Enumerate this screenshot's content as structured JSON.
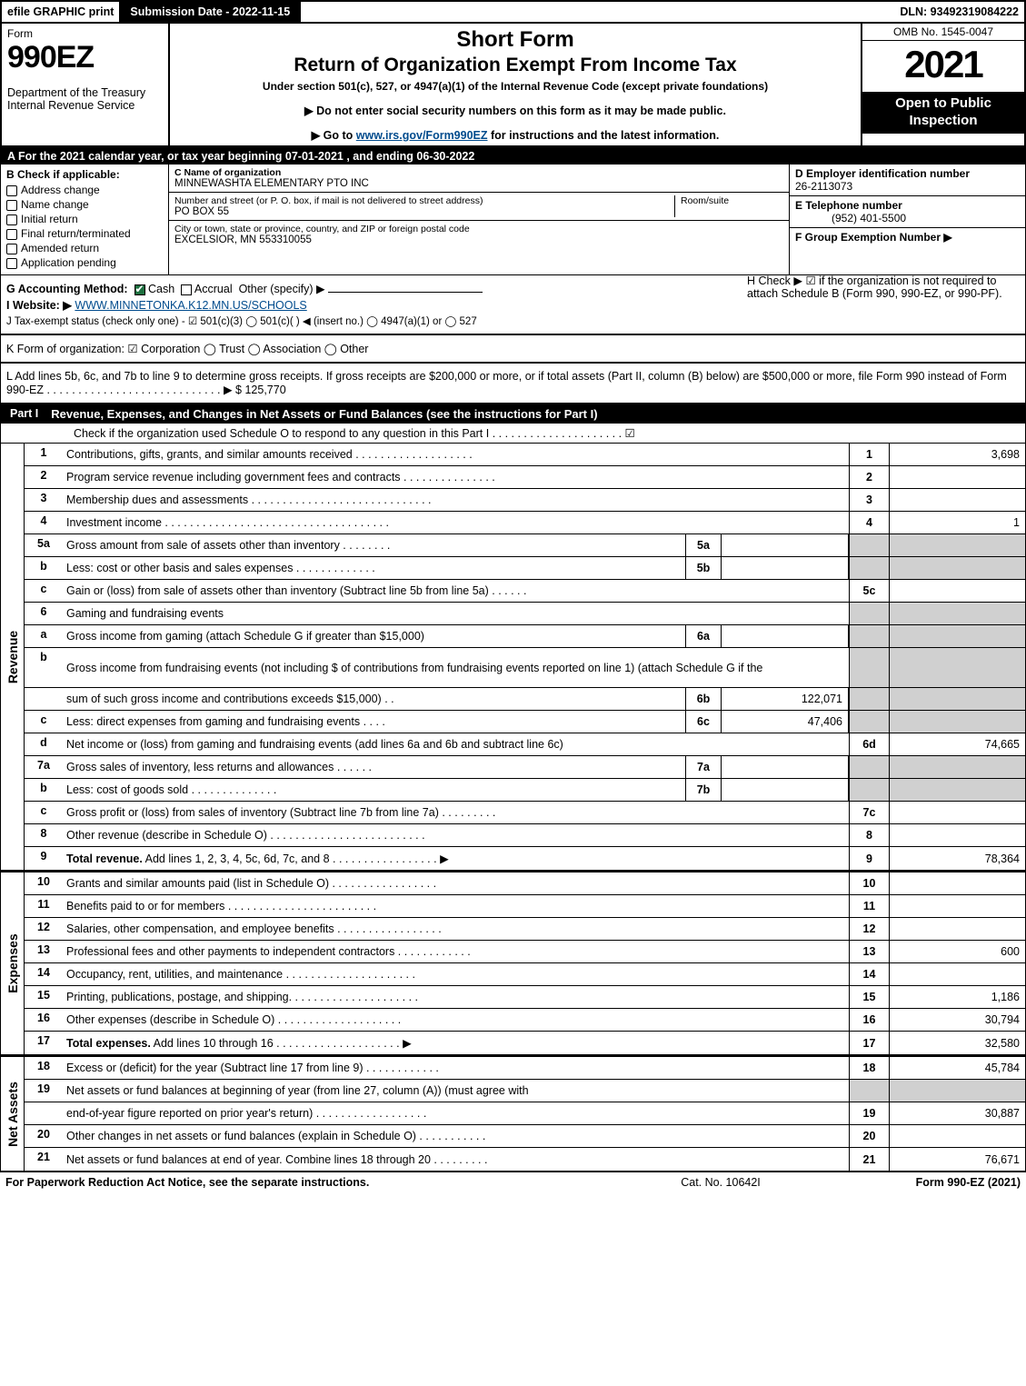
{
  "topbar": {
    "efile": "efile GRAPHIC print",
    "subdate": "Submission Date - 2022-11-15",
    "dln": "DLN: 93492319084222"
  },
  "hdr": {
    "form": "Form",
    "formno": "990EZ",
    "dept": "Department of the Treasury\nInternal Revenue Service",
    "title": "Short Form",
    "title2": "Return of Organization Exempt From Income Tax",
    "sub": "Under section 501(c), 527, or 4947(a)(1) of the Internal Revenue Code (except private foundations)",
    "arrow1": "▶ Do not enter social security numbers on this form as it may be made public.",
    "arrow2": "▶ Go to www.irs.gov/Form990EZ for instructions and the latest information.",
    "omb": "OMB No. 1545-0047",
    "year": "2021",
    "open": "Open to Public Inspection"
  },
  "A": "A  For the 2021 calendar year, or tax year beginning 07-01-2021 , and ending 06-30-2022",
  "B": {
    "label": "B  Check if applicable:",
    "items": [
      "Address change",
      "Name change",
      "Initial return",
      "Final return/terminated",
      "Amended return",
      "Application pending"
    ]
  },
  "C": {
    "label": "C Name of organization",
    "name": "MINNEWASHTA ELEMENTARY PTO INC",
    "streetlbl": "Number and street (or P. O. box, if mail is not delivered to street address)",
    "room": "Room/suite",
    "street": "PO BOX 55",
    "citylbl": "City or town, state or province, country, and ZIP or foreign postal code",
    "city": "EXCELSIOR, MN  553310055"
  },
  "D": {
    "lbl": "D Employer identification number",
    "val": "26-2113073",
    "tel_lbl": "E Telephone number",
    "tel": "(952) 401-5500",
    "grp_lbl": "F Group Exemption Number   ▶",
    "grp": ""
  },
  "G": {
    "lbl": "G Accounting Method:",
    "cash": "Cash",
    "accr": "Accrual",
    "other": "Other (specify) ▶"
  },
  "H": "H   Check ▶  ☑  if the organization is not required to attach Schedule B (Form 990, 990-EZ, or 990-PF).",
  "I": {
    "lbl": "I Website: ▶",
    "val": "WWW.MINNETONKA.K12.MN.US/SCHOOLS"
  },
  "J": "J Tax-exempt status (check only one) - ☑ 501(c)(3)  ◯ 501(c)(  ) ◀ (insert no.)  ◯ 4947(a)(1) or  ◯ 527",
  "K": "K Form of organization:  ☑ Corporation  ◯ Trust  ◯ Association  ◯ Other",
  "L": "L Add lines 5b, 6c, and 7b to line 9 to determine gross receipts. If gross receipts are $200,000 or more, or if total assets (Part II, column (B) below) are $500,000 or more, file Form 990 instead of Form 990-EZ  .  .  .  .  .  .  .  .  .  .  .  .  .  .  .  .  .  .  .  .  .  .  .  .  .  .  .  .  ▶ $ 125,770",
  "part1": {
    "label": "Part I",
    "title": "Revenue, Expenses, and Changes in Net Assets or Fund Balances (see the instructions for Part I)",
    "check": "Check if the organization used Schedule O to respond to any question in this Part I .  .  .  .  .  .  .  .  .  .  .  .  .  .  .  .  .  .  .  .  .  ☑"
  },
  "rev": [
    {
      "n": "1",
      "d": "Contributions, gifts, grants, and similar amounts received  .  .  .  .  .  .  .  .  .  .  .  .  .  .  .  .  .  .  .",
      "rn": "1",
      "rv": "3,698"
    },
    {
      "n": "2",
      "d": "Program service revenue including government fees and contracts  .  .  .  .  .  .  .  .  .  .  .  .  .  .  .",
      "rn": "2",
      "rv": ""
    },
    {
      "n": "3",
      "d": "Membership dues and assessments  .  .  .  .  .  .  .  .  .  .  .  .  .  .  .  .  .  .  .  .  .  .  .  .  .  .  .  .  .",
      "rn": "3",
      "rv": ""
    },
    {
      "n": "4",
      "d": "Investment income  .  .  .  .  .  .  .  .  .  .  .  .  .  .  .  .  .  .  .  .  .  .  .  .  .  .  .  .  .  .  .  .  .  .  .  .",
      "rn": "4",
      "rv": "1"
    },
    {
      "n": "5a",
      "d": "Gross amount from sale of assets other than inventory  .  .  .  .  .  .  .  .",
      "mid": "5a",
      "mv": "",
      "grey": true
    },
    {
      "n": "b",
      "d": "Less: cost or other basis and sales expenses  .  .  .  .  .  .  .  .  .  .  .  .  .",
      "mid": "5b",
      "mv": "",
      "grey": true
    },
    {
      "n": "c",
      "d": "Gain or (loss) from sale of assets other than inventory (Subtract line 5b from line 5a)  .  .  .  .  .  .",
      "rn": "5c",
      "rv": ""
    },
    {
      "n": "6",
      "d": "Gaming and fundraising events",
      "grey": true,
      "noright": true
    },
    {
      "n": "a",
      "d": "Gross income from gaming (attach Schedule G if greater than $15,000)",
      "mid": "6a",
      "mv": "",
      "grey": true
    },
    {
      "n": "b",
      "d": "Gross income from fundraising events (not including $                       of contributions from fundraising events reported on line 1) (attach Schedule G if the",
      "grey": true,
      "noright": true,
      "tall": true
    },
    {
      "n": "",
      "d": "sum of such gross income and contributions exceeds $15,000)    .   .",
      "mid": "6b",
      "mv": "122,071",
      "grey": true
    },
    {
      "n": "c",
      "d": "Less: direct expenses from gaming and fundraising events    .   .   .  .",
      "mid": "6c",
      "mv": "47,406",
      "grey": true
    },
    {
      "n": "d",
      "d": "Net income or (loss) from gaming and fundraising events (add lines 6a and 6b and subtract line 6c)",
      "rn": "6d",
      "rv": "74,665"
    },
    {
      "n": "7a",
      "d": "Gross sales of inventory, less returns and allowances  .  .  .  .  .  .",
      "mid": "7a",
      "mv": "",
      "grey": true
    },
    {
      "n": "b",
      "d": "Less: cost of goods sold        .   .   .   .   .   .   .   .   .   .   .   .   .   .",
      "mid": "7b",
      "mv": "",
      "grey": true
    },
    {
      "n": "c",
      "d": "Gross profit or (loss) from sales of inventory (Subtract line 7b from line 7a)  .  .  .  .  .  .  .  .  .",
      "rn": "7c",
      "rv": ""
    },
    {
      "n": "8",
      "d": "Other revenue (describe in Schedule O)  .  .  .  .  .  .  .  .  .  .  .  .  .  .  .  .  .  .  .  .  .  .  .  .  .",
      "rn": "8",
      "rv": ""
    },
    {
      "n": "9",
      "d": "Total revenue. Add lines 1, 2, 3, 4, 5c, 6d, 7c, and 8  .   .   .   .   .   .   .   .   .   .   .   .   .   .   .   .   .   ▶",
      "rn": "9",
      "rv": "78,364",
      "bold": true
    }
  ],
  "exp": [
    {
      "n": "10",
      "d": "Grants and similar amounts paid (list in Schedule O)  .   .   .   .   .   .   .   .   .   .   .   .   .   .   .   .   .",
      "rn": "10",
      "rv": ""
    },
    {
      "n": "11",
      "d": "Benefits paid to or for members     .   .   .   .   .   .   .   .   .   .   .   .   .   .   .   .   .   .   .   .   .   .   .   .",
      "rn": "11",
      "rv": ""
    },
    {
      "n": "12",
      "d": "Salaries, other compensation, and employee benefits .   .   .   .   .   .   .   .   .   .   .   .   .   .   .   .   .",
      "rn": "12",
      "rv": ""
    },
    {
      "n": "13",
      "d": "Professional fees and other payments to independent contractors  .   .   .   .   .   .   .   .   .   .   .   .",
      "rn": "13",
      "rv": "600"
    },
    {
      "n": "14",
      "d": "Occupancy, rent, utilities, and maintenance .   .   .   .   .   .   .   .   .   .   .   .   .   .   .   .   .   .   .   .   .",
      "rn": "14",
      "rv": ""
    },
    {
      "n": "15",
      "d": "Printing, publications, postage, and shipping.   .   .   .   .   .   .   .   .   .   .   .   .   .   .   .   .   .   .   .   .",
      "rn": "15",
      "rv": "1,186"
    },
    {
      "n": "16",
      "d": "Other expenses (describe in Schedule O)     .   .   .   .   .   .   .   .   .   .   .   .   .   .   .   .   .   .   .   .",
      "rn": "16",
      "rv": "30,794"
    },
    {
      "n": "17",
      "d": "Total expenses. Add lines 10 through 16    .   .   .   .   .   .   .   .   .   .   .   .   .   .   .   .   .   .   .   .   ▶",
      "rn": "17",
      "rv": "32,580",
      "bold": true
    }
  ],
  "net": [
    {
      "n": "18",
      "d": "Excess or (deficit) for the year (Subtract line 17 from line 9)       .   .   .   .   .   .   .   .   .   .   .   .",
      "rn": "18",
      "rv": "45,784"
    },
    {
      "n": "19",
      "d": "Net assets or fund balances at beginning of year (from line 27, column (A)) (must agree with",
      "noright": true,
      "grey": true
    },
    {
      "n": "",
      "d": "end-of-year figure reported on prior year's return) .   .   .   .   .   .   .   .   .   .   .   .   .   .   .   .   .   .",
      "rn": "19",
      "rv": "30,887"
    },
    {
      "n": "20",
      "d": "Other changes in net assets or fund balances (explain in Schedule O) .   .   .   .   .   .   .   .   .   .   .",
      "rn": "20",
      "rv": ""
    },
    {
      "n": "21",
      "d": "Net assets or fund balances at end of year. Combine lines 18 through 20 .   .   .   .   .   .   .   .   .",
      "rn": "21",
      "rv": "76,671"
    }
  ],
  "labels": {
    "rev": "Revenue",
    "exp": "Expenses",
    "net": "Net Assets"
  },
  "foot": {
    "a": "For Paperwork Reduction Act Notice, see the separate instructions.",
    "b": "Cat. No. 10642I",
    "c": "Form 990-EZ (2021)"
  }
}
